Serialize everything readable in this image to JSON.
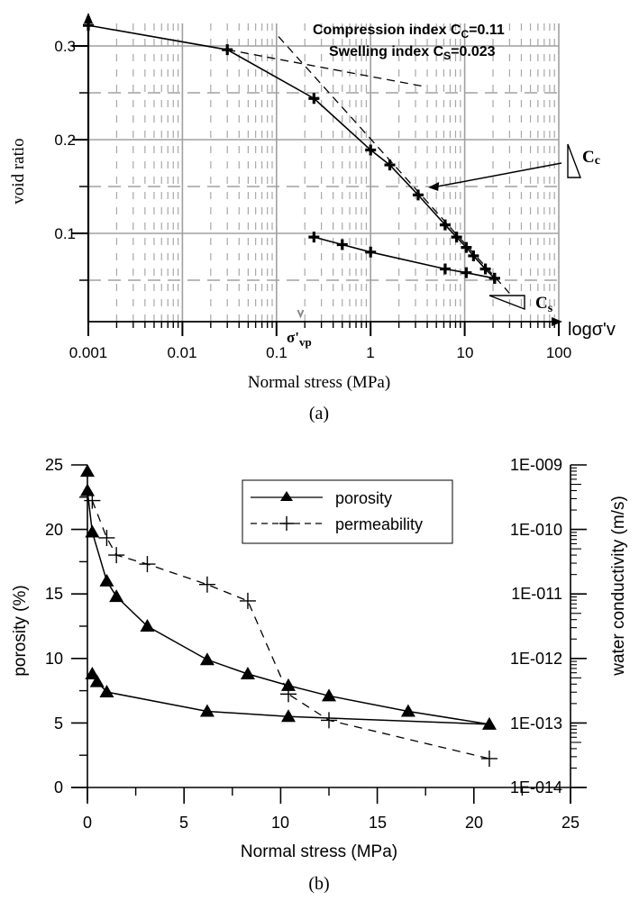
{
  "chart_data": [
    {
      "id": "a",
      "type": "line",
      "panel_label": "(a)",
      "xscale": "log",
      "xlabel": "Normal stress (MPa)",
      "ylabel": "void ratio",
      "xlim": [
        0.001,
        100
      ],
      "ylim": [
        0.0058,
        0.34
      ],
      "xticks": [
        0.001,
        0.01,
        0.1,
        1,
        10,
        100
      ],
      "xtick_labels": [
        "0.001",
        "0.01",
        "0.1",
        "1",
        "10",
        "100"
      ],
      "yticks": [
        0.1,
        0.2,
        0.3
      ],
      "ytick_labels": [
        "0.1",
        "0.2",
        "0.3"
      ],
      "grid": true,
      "axis_end_label": "logσ'v",
      "annotations": {
        "compression_line1": "Compression index C",
        "compression_sub": "C",
        "compression_value": "=0.11",
        "swelling_line1": "Swelling index C",
        "swelling_sub": "S",
        "swelling_value": "=0.023",
        "cc_label": "C",
        "cc_sub": "c",
        "cs_label": "C",
        "cs_sub": "s",
        "preconsolidation_label": "σ'",
        "preconsolidation_sub": "vp",
        "preconsolidation_stress": 0.18
      },
      "series": [
        {
          "name": "loading",
          "marker": "plus",
          "x": [
            0.001,
            0.03,
            0.25,
            1.0,
            1.6,
            3.2,
            6.2,
            8.2,
            10.4,
            12.4,
            16.6,
            20.8
          ],
          "y": [
            0.322,
            0.296,
            0.244,
            0.189,
            0.173,
            0.141,
            0.109,
            0.096,
            0.085,
            0.076,
            0.062,
            0.052
          ]
        },
        {
          "name": "unloading",
          "marker": "plus",
          "x": [
            0.25,
            0.5,
            1.0,
            6.2,
            10.4,
            20.8
          ],
          "y": [
            0.096,
            0.088,
            0.08,
            0.062,
            0.058,
            0.052
          ]
        },
        {
          "name": "swelling-tangent",
          "style": "dashed",
          "x": [
            0.03,
            3.6
          ],
          "y": [
            0.296,
            0.257
          ]
        },
        {
          "name": "compression-tangent",
          "style": "dashed",
          "x": [
            0.105,
            30
          ],
          "y": [
            0.31,
            0.036
          ]
        }
      ]
    },
    {
      "id": "b",
      "type": "line",
      "panel_label": "(b)",
      "xlabel": "Normal stress (MPa)",
      "ylabel": "porosity (%)",
      "y2label": "water conductivity (m/s)",
      "xlim": [
        0,
        25
      ],
      "ylim": [
        0,
        25
      ],
      "y2lim": [
        1e-14,
        1e-09
      ],
      "y2scale": "log",
      "xticks": [
        0,
        5,
        10,
        15,
        20,
        25
      ],
      "xtick_labels": [
        "0",
        "5",
        "10",
        "15",
        "20",
        "25"
      ],
      "yticks": [
        0,
        5,
        10,
        15,
        20,
        25
      ],
      "ytick_labels": [
        "0",
        "5",
        "10",
        "15",
        "20",
        "25"
      ],
      "y2ticks": [
        1e-09,
        1e-10,
        1e-11,
        1e-12,
        1e-13,
        1e-14
      ],
      "y2tick_labels": [
        "1E-009",
        "1E-010",
        "1E-011",
        "1E-012",
        "1E-013",
        "1E-014"
      ],
      "grid": false,
      "legend": {
        "placement": "top-center",
        "entries": [
          "porosity",
          "permeability"
        ]
      },
      "series": [
        {
          "name": "porosity",
          "marker": "triangle",
          "style": "solid",
          "axis": "left",
          "x": [
            0,
            0,
            0.25,
            1.0,
            1.5,
            3.1,
            6.2,
            8.3,
            10.4,
            12.5,
            16.6,
            20.8,
            10.4,
            6.2,
            1.0,
            0.5,
            0.25
          ],
          "y": [
            24.5,
            23.0,
            19.8,
            16.0,
            14.8,
            12.5,
            9.9,
            8.8,
            7.9,
            7.1,
            5.9,
            4.9,
            5.5,
            5.9,
            7.4,
            8.2,
            8.8
          ]
        },
        {
          "name": "permeability",
          "marker": "plus",
          "style": "dashed",
          "axis": "right",
          "x": [
            0.25,
            1.0,
            1.5,
            3.1,
            6.2,
            8.3,
            10.4,
            12.5,
            20.8
          ],
          "y": [
            2.8e-10,
            7.4e-11,
            4e-11,
            2.9e-11,
            1.4e-11,
            7.8e-12,
            2.8e-13,
            1.1e-13,
            2.8e-14
          ]
        }
      ]
    }
  ]
}
